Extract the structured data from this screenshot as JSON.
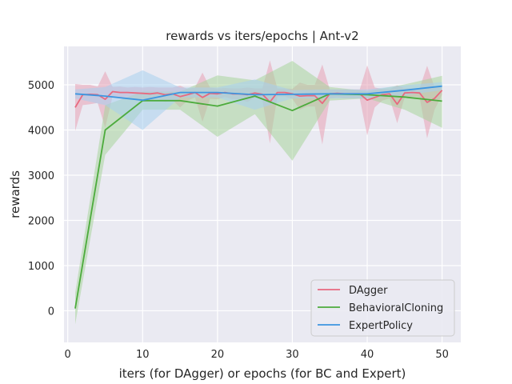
{
  "chart_data": {
    "type": "line",
    "title": "rewards vs iters/epochs | Ant-v2",
    "xlabel": "iters (for DAgger) or epochs (for BC and Expert)",
    "ylabel": "rewards",
    "xlim": [
      -0.5,
      52.5
    ],
    "ylim": [
      -700,
      5850
    ],
    "xticks": [
      0,
      10,
      20,
      30,
      40,
      50
    ],
    "yticks": [
      0,
      1000,
      2000,
      3000,
      4000,
      5000
    ],
    "grid": true,
    "legend_position": "lower-right",
    "series": [
      {
        "name": "DAgger",
        "color": "#e8697f",
        "fill": "#e8a0b4",
        "x": [
          1,
          2,
          3,
          4,
          5,
          6,
          7,
          8,
          9,
          10,
          11,
          12,
          13,
          14,
          15,
          16,
          17,
          18,
          19,
          20,
          21,
          22,
          23,
          24,
          25,
          26,
          27,
          28,
          29,
          30,
          31,
          32,
          33,
          34,
          35,
          36,
          37,
          38,
          39,
          40,
          41,
          42,
          43,
          44,
          45,
          46,
          47,
          48,
          49,
          50
        ],
        "y": [
          4500,
          4780,
          4790,
          4780,
          4680,
          4850,
          4830,
          4830,
          4820,
          4810,
          4800,
          4820,
          4780,
          4800,
          4740,
          4780,
          4830,
          4720,
          4810,
          4800,
          4830,
          4800,
          4800,
          4780,
          4820,
          4790,
          4620,
          4830,
          4830,
          4800,
          4750,
          4760,
          4760,
          4590,
          4800,
          4810,
          4800,
          4800,
          4800,
          4660,
          4720,
          4780,
          4800,
          4570,
          4820,
          4830,
          4820,
          4610,
          4700,
          4880
        ],
        "lower": [
          3980,
          4550,
          4570,
          4600,
          4050,
          4750,
          4700,
          4720,
          4690,
          4680,
          4650,
          4700,
          4620,
          4660,
          4500,
          4650,
          4720,
          4180,
          4690,
          4680,
          4730,
          4680,
          4680,
          4620,
          4720,
          4660,
          3700,
          4740,
          4740,
          4690,
          4450,
          4520,
          4520,
          3680,
          4700,
          4720,
          4700,
          4700,
          4700,
          3880,
          4500,
          4650,
          4700,
          4150,
          4720,
          4740,
          4720,
          3820,
          4450,
          4780
        ],
        "upper": [
          5020,
          5000,
          5000,
          4960,
          5300,
          4950,
          4960,
          4940,
          4950,
          4940,
          4950,
          4940,
          4940,
          4940,
          4980,
          4910,
          4940,
          5270,
          4940,
          4920,
          4930,
          4920,
          4920,
          4940,
          4920,
          4920,
          5540,
          4920,
          4920,
          4910,
          5050,
          5000,
          5000,
          5450,
          4900,
          4900,
          4900,
          4900,
          4900,
          5430,
          4940,
          4910,
          4900,
          4990,
          4920,
          4920,
          4920,
          5420,
          4950,
          4980
        ]
      },
      {
        "name": "BehavioralCloning",
        "color": "#4cab3c",
        "fill": "#a8d49c",
        "x": [
          1,
          5,
          10,
          15,
          20,
          25,
          30,
          35,
          40,
          45,
          50
        ],
        "y": [
          50,
          4000,
          4650,
          4650,
          4530,
          4750,
          4430,
          4800,
          4780,
          4730,
          4640
        ],
        "lower": [
          -300,
          3450,
          4450,
          4450,
          3850,
          4350,
          3320,
          4650,
          4700,
          4450,
          4050
        ],
        "upper": [
          400,
          4550,
          4850,
          4850,
          5210,
          5100,
          5530,
          4950,
          4860,
          5010,
          5200
        ]
      },
      {
        "name": "ExpertPolicy",
        "color": "#3d96e0",
        "fill": "#a8cfef",
        "x": [
          1,
          5,
          10,
          15,
          20,
          25,
          30,
          35,
          40,
          45,
          50
        ],
        "y": [
          4800,
          4750,
          4660,
          4830,
          4830,
          4780,
          4790,
          4800,
          4800,
          4880,
          4970
        ],
        "lower": [
          4700,
          4550,
          4000,
          4720,
          4720,
          4450,
          4700,
          4700,
          4700,
          4770,
          4880
        ],
        "upper": [
          4900,
          4950,
          5320,
          4940,
          4940,
          5120,
          4880,
          4900,
          4900,
          4990,
          5060
        ]
      }
    ]
  }
}
